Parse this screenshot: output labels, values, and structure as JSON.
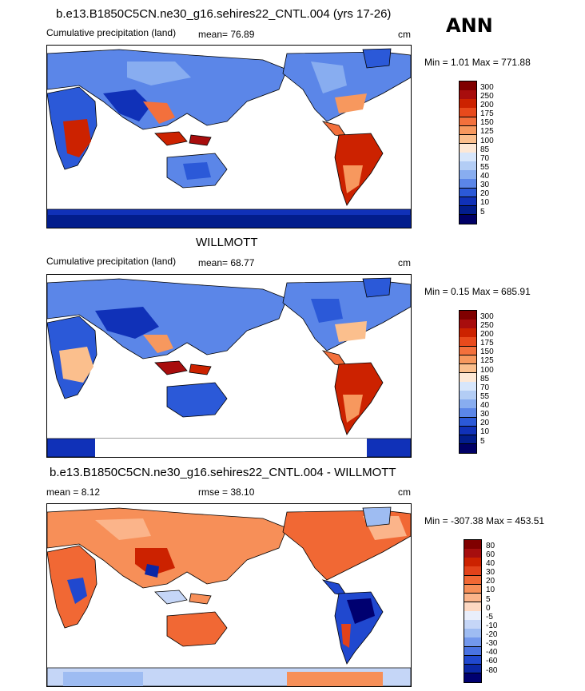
{
  "panels": [
    {
      "id": "model",
      "title": "b.e13.B1850C5CN.ne30_g16.sehires22_CNTL.004 (yrs 17-26)",
      "left_label": "Cumulative precipitation (land)",
      "stat_label": "mean=  76.89",
      "units": "cm",
      "minmax": "Min =   1.01 Max = 771.88",
      "colorbar": {
        "labels": [
          "300",
          "250",
          "200",
          "175",
          "150",
          "125",
          "100",
          "85",
          "70",
          "55",
          "40",
          "30",
          "20",
          "10",
          "5"
        ],
        "colors": [
          "#800000",
          "#a80d0d",
          "#cc2200",
          "#e84a1c",
          "#f3703c",
          "#f7985e",
          "#fbbf8d",
          "#fde8d6",
          "#d7e6fb",
          "#b3cdf5",
          "#88adf0",
          "#5b86e8",
          "#2b59d8",
          "#1031b8",
          "#021d8c",
          "#000066"
        ]
      }
    },
    {
      "id": "obs",
      "title": "WILLMOTT",
      "left_label": "Cumulative precipitation (land)",
      "stat_label": "mean=  68.77",
      "units": "cm",
      "minmax": "Min =   0.15 Max = 685.91",
      "colorbar": {
        "labels": [
          "300",
          "250",
          "200",
          "175",
          "150",
          "125",
          "100",
          "85",
          "70",
          "55",
          "40",
          "30",
          "20",
          "10",
          "5"
        ],
        "colors": [
          "#800000",
          "#a80d0d",
          "#cc2200",
          "#e84a1c",
          "#f3703c",
          "#f7985e",
          "#fbbf8d",
          "#fde8d6",
          "#d7e6fb",
          "#b3cdf5",
          "#88adf0",
          "#5b86e8",
          "#2b59d8",
          "#1031b8",
          "#021d8c",
          "#000066"
        ]
      }
    },
    {
      "id": "diff",
      "title": "b.e13.B1850C5CN.ne30_g16.sehires22_CNTL.004 - WILLMOTT",
      "left_label": "mean =   8.12",
      "stat_label": "rmse =  38.10",
      "units": "cm",
      "minmax": "Min = -307.38 Max = 453.51",
      "colorbar": {
        "labels": [
          "80",
          "60",
          "40",
          "30",
          "20",
          "10",
          "5",
          "0",
          "-5",
          "-10",
          "-20",
          "-30",
          "-40",
          "-60",
          "-80"
        ],
        "colors": [
          "#800000",
          "#a60e0e",
          "#cc2200",
          "#e2421a",
          "#f16834",
          "#f78f58",
          "#fbb48a",
          "#fdd8c2",
          "#e9eefb",
          "#c5d6f7",
          "#9ebcf2",
          "#7398ec",
          "#4a73e2",
          "#2048cf",
          "#0b27a6",
          "#000070"
        ]
      }
    }
  ],
  "season": "ANN",
  "colors": {
    "land_default": "#5b86e8",
    "ocean": "#ffffff",
    "coast": "#000000"
  }
}
